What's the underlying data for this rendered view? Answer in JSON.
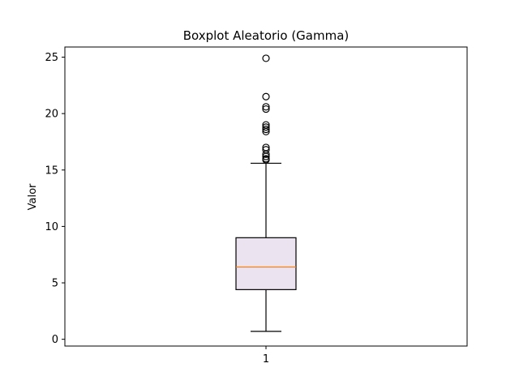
{
  "chart_data": {
    "type": "boxplot",
    "title": "Boxplot Aleatorio (Gamma)",
    "xlabel": "",
    "ylabel": "Valor",
    "ylim": [
      -0.6,
      25.9
    ],
    "yticks": [
      0,
      5,
      10,
      15,
      20,
      25
    ],
    "categories": [
      "1"
    ],
    "grid": false,
    "boxes": [
      {
        "category": "1",
        "whisker_low": 0.7,
        "q1": 4.4,
        "median": 6.4,
        "q3": 9.0,
        "whisker_high": 15.6,
        "outliers": [
          15.9,
          16.0,
          16.2,
          16.4,
          16.8,
          17.0,
          18.4,
          18.6,
          18.8,
          19.0,
          20.4,
          20.6,
          21.5,
          24.9
        ]
      }
    ],
    "colors": {
      "box_fill": "#ebe3f0",
      "box_edge": "#000000",
      "median": "#ff7f0e",
      "whisker": "#000000",
      "flier_edge": "#000000"
    }
  }
}
